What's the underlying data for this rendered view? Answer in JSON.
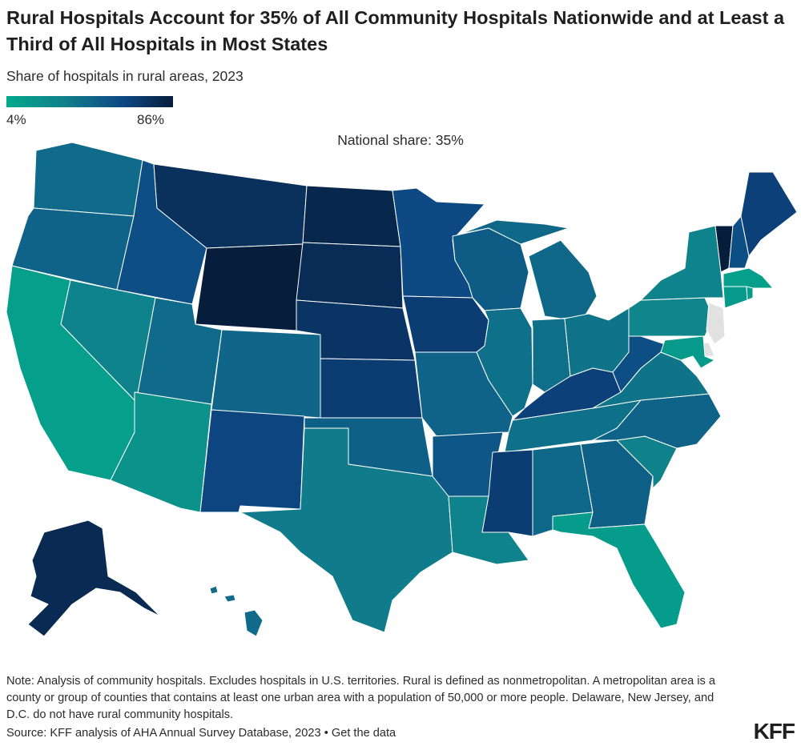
{
  "title": "Rural Hospitals Account for 35% of All Community Hospitals Nationwide and at Least a Third of All Hospitals in Most States",
  "subtitle": "Share of hospitals in rural areas, 2023",
  "legend": {
    "min_label": "4%",
    "max_label": "86%",
    "min_value": 4,
    "max_value": 86,
    "colors": [
      "#02a98b",
      "#107f8b",
      "#0d4784",
      "#071d3c"
    ]
  },
  "national_share_label": "National share: 35%",
  "no_data_color": "#e1e1e1",
  "map_data": {
    "metric": "Share of hospitals in rural areas, 2023",
    "states": [
      {
        "id": "WA",
        "level": 0.45
      },
      {
        "id": "OR",
        "level": 0.5
      },
      {
        "id": "CA",
        "level": 0.08
      },
      {
        "id": "NV",
        "level": 0.3
      },
      {
        "id": "ID",
        "level": 0.62
      },
      {
        "id": "MT",
        "level": 0.85
      },
      {
        "id": "WY",
        "level": 1.0
      },
      {
        "id": "UT",
        "level": 0.45
      },
      {
        "id": "AZ",
        "level": 0.18
      },
      {
        "id": "CO",
        "level": 0.48
      },
      {
        "id": "NM",
        "level": 0.68
      },
      {
        "id": "ND",
        "level": 0.92
      },
      {
        "id": "SD",
        "level": 0.88
      },
      {
        "id": "NE",
        "level": 0.82
      },
      {
        "id": "KS",
        "level": 0.75
      },
      {
        "id": "OK",
        "level": 0.52
      },
      {
        "id": "TX",
        "level": 0.35
      },
      {
        "id": "MN",
        "level": 0.65
      },
      {
        "id": "IA",
        "level": 0.75
      },
      {
        "id": "MO",
        "level": 0.5
      },
      {
        "id": "AR",
        "level": 0.58
      },
      {
        "id": "LA",
        "level": 0.3
      },
      {
        "id": "WI",
        "level": 0.55
      },
      {
        "id": "IL",
        "level": 0.42
      },
      {
        "id": "MS",
        "level": 0.75
      },
      {
        "id": "MI",
        "level": 0.47
      },
      {
        "id": "IN",
        "level": 0.43
      },
      {
        "id": "KY",
        "level": 0.72
      },
      {
        "id": "TN",
        "level": 0.42
      },
      {
        "id": "AL",
        "level": 0.47
      },
      {
        "id": "OH",
        "level": 0.4
      },
      {
        "id": "WV",
        "level": 0.62
      },
      {
        "id": "GA",
        "level": 0.52
      },
      {
        "id": "FL",
        "level": 0.1
      },
      {
        "id": "SC",
        "level": 0.32
      },
      {
        "id": "NC",
        "level": 0.5
      },
      {
        "id": "VA",
        "level": 0.4
      },
      {
        "id": "PA",
        "level": 0.28
      },
      {
        "id": "NY",
        "level": 0.3
      },
      {
        "id": "ME",
        "level": 0.72
      },
      {
        "id": "NH",
        "level": 0.62
      },
      {
        "id": "VT",
        "level": 1.0
      },
      {
        "id": "MA",
        "level": 0.08
      },
      {
        "id": "CT",
        "level": 0.12
      },
      {
        "id": "RI",
        "level": 0.1
      },
      {
        "id": "MD",
        "level": 0.12
      },
      {
        "id": "NJ",
        "level": null
      },
      {
        "id": "DE",
        "level": null
      },
      {
        "id": "AK",
        "level": 0.9
      },
      {
        "id": "HI",
        "level": 0.45
      }
    ]
  },
  "note": "Note: Analysis of community hospitals. Excludes hospitals in U.S. territories. Rural is defined as nonmetropolitan. A metropolitan area is a county or group of counties that contains at least one urban area with a population of 50,000 or more people. Delaware, New Jersey, and D.C. do not have rural community hospitals.",
  "source": "Source: KFF analysis of AHA Annual Survey Database, 2023 • Get the data",
  "logo_text": "KFF"
}
